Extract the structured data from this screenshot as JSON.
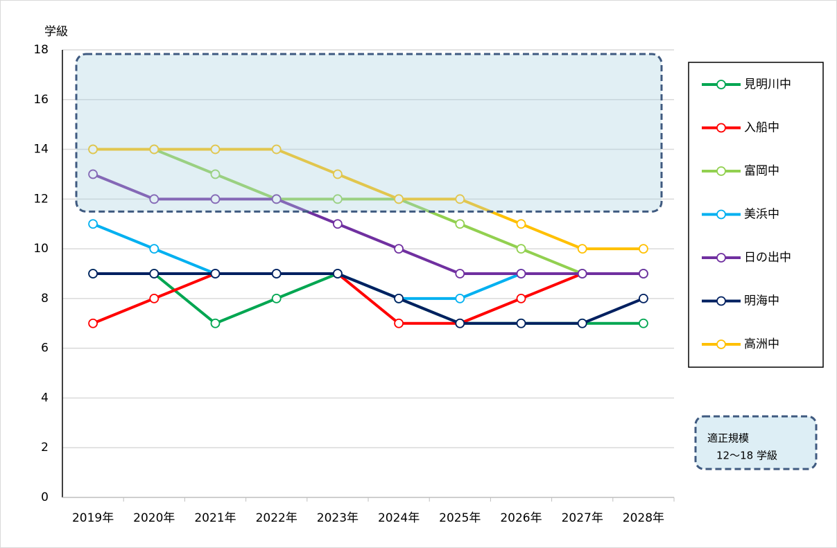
{
  "chart_data": {
    "type": "line",
    "y_label": "学級",
    "categories": [
      "2019年",
      "2020年",
      "2021年",
      "2022年",
      "2023年",
      "2024年",
      "2025年",
      "2026年",
      "2027年",
      "2028年"
    ],
    "series": [
      {
        "name": "見明川中",
        "color": "#00a651",
        "values": [
          9,
          9,
          7,
          8,
          9,
          8,
          7,
          7,
          7,
          7
        ]
      },
      {
        "name": "入船中",
        "color": "#ff0000",
        "values": [
          7,
          8,
          9,
          9,
          9,
          7,
          7,
          8,
          9,
          9
        ]
      },
      {
        "name": "富岡中",
        "color": "#92d050",
        "values": [
          14,
          14,
          13,
          12,
          12,
          12,
          11,
          10,
          9,
          9
        ]
      },
      {
        "name": "美浜中",
        "color": "#00b0f0",
        "values": [
          11,
          10,
          9,
          9,
          9,
          8,
          8,
          9,
          9,
          9
        ]
      },
      {
        "name": "日の出中",
        "color": "#7030a0",
        "values": [
          13,
          12,
          12,
          12,
          11,
          10,
          9,
          9,
          9,
          9
        ]
      },
      {
        "name": "明海中",
        "color": "#002060",
        "values": [
          9,
          9,
          9,
          9,
          9,
          8,
          7,
          7,
          7,
          8
        ]
      },
      {
        "name": "高洲中",
        "color": "#ffc000",
        "values": [
          14,
          14,
          14,
          14,
          13,
          12,
          12,
          11,
          10,
          10
        ]
      }
    ],
    "ylim": [
      0,
      18
    ],
    "yticks": [
      0,
      2,
      4,
      6,
      8,
      10,
      12,
      14,
      16,
      18
    ],
    "grid": true,
    "target_range": [
      12,
      18
    ],
    "annotation": {
      "title": "適正規模",
      "text": "12〜18 学級"
    }
  }
}
